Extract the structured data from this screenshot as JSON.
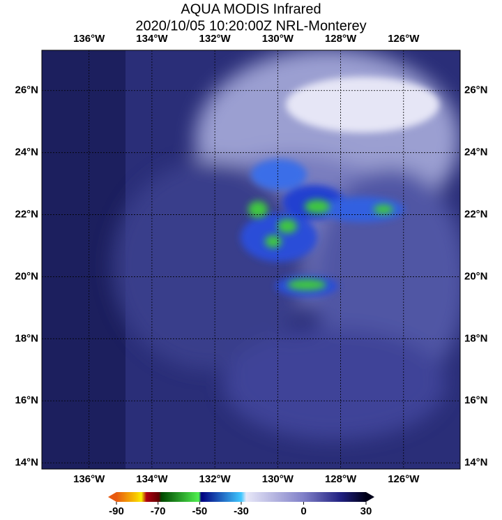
{
  "title": "AQUA MODIS Infrared",
  "subtitle": "2020/10/05 10:20:00Z NRL-Monterey",
  "map": {
    "lon_range": [
      137.5,
      124.2
    ],
    "lat_range": [
      27.3,
      13.8
    ],
    "lon_ticks": [
      {
        "value": 136,
        "label": "136°W"
      },
      {
        "value": 134,
        "label": "134°W"
      },
      {
        "value": 132,
        "label": "132°W"
      },
      {
        "value": 130,
        "label": "130°W"
      },
      {
        "value": 128,
        "label": "128°W"
      },
      {
        "value": 126,
        "label": "126°W"
      }
    ],
    "lat_ticks": [
      {
        "value": 26,
        "label": "26°N"
      },
      {
        "value": 24,
        "label": "24°N"
      },
      {
        "value": 22,
        "label": "22°N"
      },
      {
        "value": 20,
        "label": "20°N"
      },
      {
        "value": 18,
        "label": "18°N"
      },
      {
        "value": 16,
        "label": "16°N"
      },
      {
        "value": 14,
        "label": "14°N"
      }
    ]
  },
  "colorbar": {
    "range": [
      -90,
      30
    ],
    "ticks": [
      -90,
      -70,
      -50,
      -30,
      0,
      30
    ]
  }
}
